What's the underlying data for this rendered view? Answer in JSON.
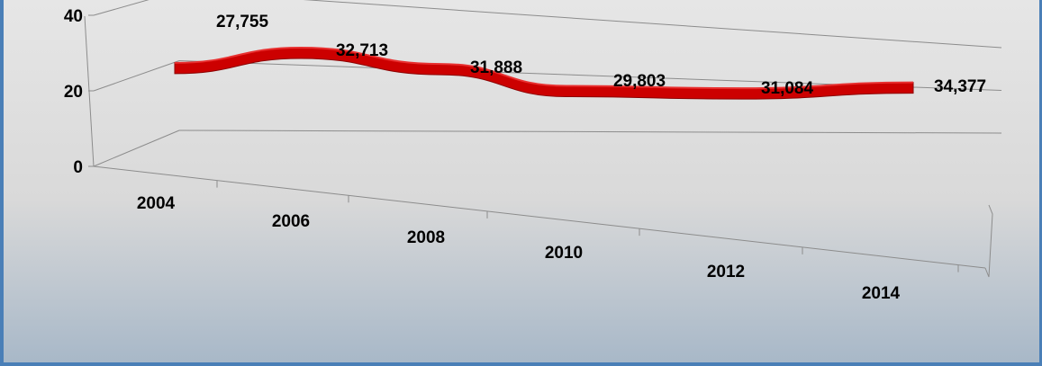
{
  "chart_data": {
    "type": "line",
    "style": "3d-ribbon",
    "categories": [
      "2004",
      "2006",
      "2008",
      "2010",
      "2012",
      "2014"
    ],
    "series": [
      {
        "values": [
          27.755,
          32.713,
          31.888,
          29.803,
          31.084,
          34.377
        ],
        "labels": [
          "27,755",
          "32,713",
          "31,888",
          "29,803",
          "31,084",
          "34,377"
        ],
        "color": "#cc0000"
      }
    ],
    "y_ticks": [
      "0",
      "20",
      "40"
    ],
    "ylim": [
      0,
      40
    ],
    "grid": true,
    "legend": "none"
  },
  "colors": {
    "ribbon": "#cc0000",
    "ribbon_dark": "#8b0000",
    "gridline": "#8c8c8c",
    "frame": "#4a7fb7"
  }
}
